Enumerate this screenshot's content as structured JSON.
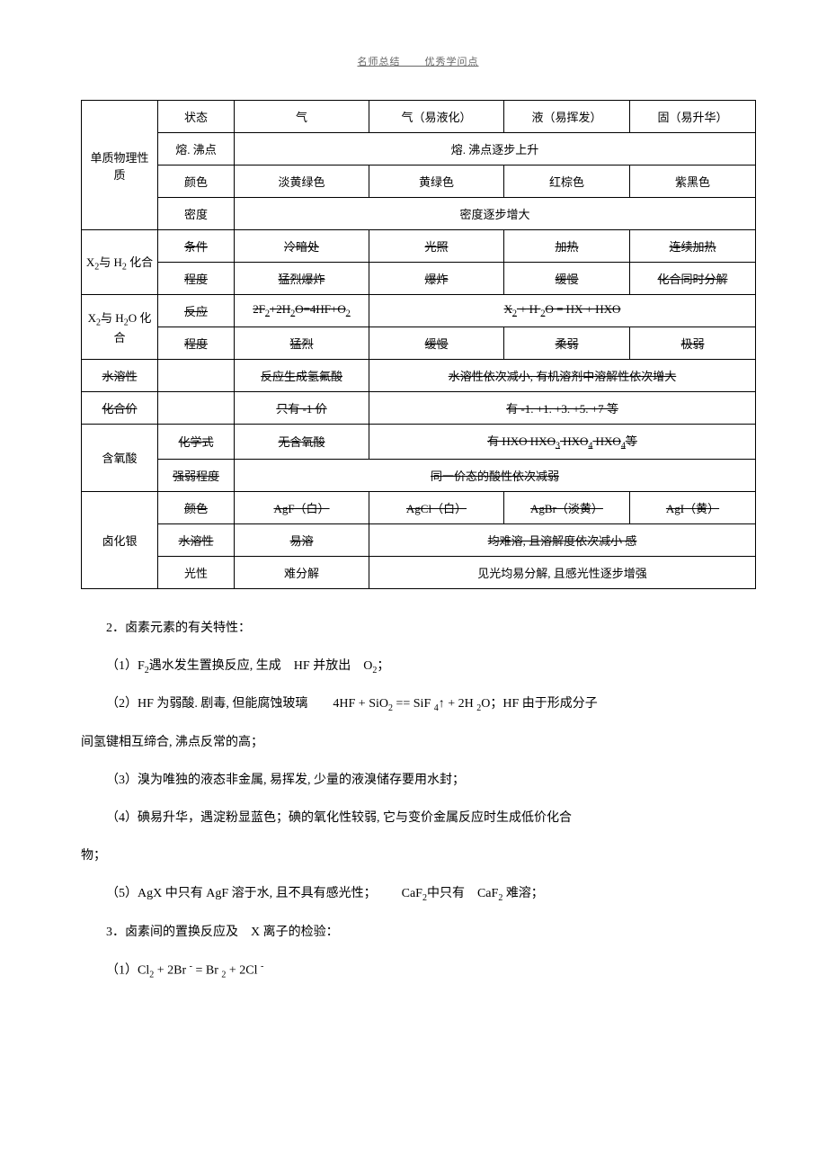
{
  "header": "名师总结 ___ 优秀学问点",
  "table": {
    "groups": [
      {
        "label": "单质物理性质",
        "rowspan": 4,
        "rows": [
          {
            "sub": "状态",
            "cells": [
              "气",
              "气（易液化）",
              "液（易挥发）",
              "固（易升华）"
            ],
            "struck": false
          },
          {
            "sub": "熔. 沸点",
            "merged": "熔. 沸点逐步上升",
            "struck": false
          },
          {
            "sub": "颜色",
            "cells": [
              "淡黄绿色",
              "黄绿色",
              "红棕色",
              "紫黑色"
            ],
            "struck": false
          },
          {
            "sub": "密度",
            "merged": "密度逐步增大",
            "struck": false
          }
        ]
      },
      {
        "label": "X₂与 H₂ 化合",
        "rowspan": 2,
        "rows": [
          {
            "sub": "条件",
            "cells": [
              "冷暗处",
              "光照",
              "加热",
              "连续加热"
            ],
            "struck": true
          },
          {
            "sub": "程度",
            "cells": [
              "猛烈爆炸",
              "爆炸",
              "缓慢",
              "化合同时分解"
            ],
            "struck": true
          }
        ]
      },
      {
        "label": "X₂与 H₂O 化合",
        "rowspan": 2,
        "rows": [
          {
            "sub": "反应",
            "firstCell": "2F₂+2H₂O=4HF+O₂",
            "mergedRest": "X₂ + H ₂O = HX + HXO",
            "struck": true
          },
          {
            "sub": "程度",
            "cells": [
              "猛烈",
              "缓慢",
              "柔弱",
              "极弱"
            ],
            "struck": true
          }
        ]
      },
      {
        "label": "水溶性",
        "rowspan": 1,
        "rows": [
          {
            "sub": "",
            "firstCell": "反应生成氢氟酸",
            "mergedRest": "水溶性依次减小, 有机溶剂中溶解性依次增大",
            "struck": true,
            "nosub": true
          }
        ]
      },
      {
        "label": "化合价",
        "rowspan": 1,
        "rows": [
          {
            "sub": "",
            "firstCell": "只有 -1 价",
            "mergedRest": "有 -1. +1. +3. +5. +7 等",
            "struck": true,
            "nosub": true
          }
        ]
      },
      {
        "label": "含氧酸",
        "rowspan": 2,
        "rows": [
          {
            "sub": "化学式",
            "firstCell": "无含氧酸",
            "mergedRest": "有 HXO HXO₃ HXO₄ HXO₄等",
            "struck": true
          },
          {
            "sub": "强弱程度",
            "merged": "同一价态的酸性依次减弱",
            "struck": true
          }
        ]
      },
      {
        "label": "卤化银",
        "rowspan": 3,
        "rows": [
          {
            "sub": "颜色",
            "cells": [
              "AgF（白）",
              "AgCl（白）",
              "AgBr（淡黄）",
              "AgI（黄）"
            ],
            "struck": true
          },
          {
            "sub": "水溶性",
            "firstCell": "易溶",
            "mergedRest": "均难溶, 且溶解度依次减小  感",
            "struck": true
          },
          {
            "sub": "光性",
            "firstCell": "难分解",
            "mergedRest": "见光均易分解, 且感光性逐步增强",
            "struck": false
          }
        ]
      }
    ]
  },
  "paragraphs": [
    "2．卤素元素的有关特性：",
    "（1）F₂遇水发生置换反应, 生成 HF 并放出 O₂；",
    "（2）HF 为弱酸. 剧毒, 但能腐蚀玻璃  4HF + SiO₂ == SiF ₄↑ + 2H ₂O；HF 由于形成分子",
    "间氢键相互缔合, 沸点反常的高；",
    "（3）溴为唯独的液态非金属, 易挥发, 少量的液溴储存要用水封；",
    "（4）碘易升华，遇淀粉显蓝色；碘的氧化性较弱, 它与变价金属反应时生成低价化合",
    "物；",
    "（5）AgX 中只有 AgF 溶于水, 且不具有感光性；  CaF₂中只有 CaF₂ 难溶；",
    "3．卤素间的置换反应及 X 离子的检验：",
    "（1）Cl₂ + 2Br ⁻ = Br ₂ + 2Cl ⁻"
  ],
  "noindentIdx": [
    3,
    6
  ]
}
